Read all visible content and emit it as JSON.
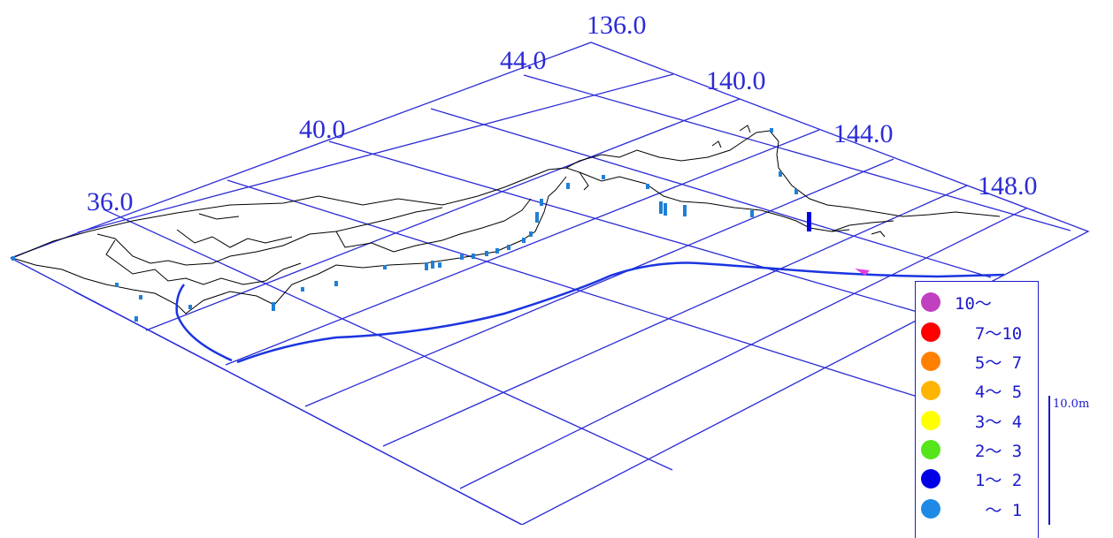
{
  "map": {
    "grid_labels": {
      "lat_36": "36.0",
      "lat_40": "40.0",
      "lat_44": "44.0",
      "lon_136": "136.0",
      "lon_140": "140.0",
      "lon_144": "144.0",
      "lon_148": "148.0"
    },
    "grid_color": "#2b2bd6",
    "coast_color": "#000000",
    "track_color": "#1a35e0",
    "bar_color": "#1f7fd6",
    "arrow_color": "#e040e0"
  },
  "legend": {
    "items": [
      {
        "label": "10～",
        "color": "#c040c0"
      },
      {
        "label": "  7～10",
        "color": "#ff0000"
      },
      {
        "label": "  5～ 7",
        "color": "#ff8000"
      },
      {
        "label": "  4～ 5",
        "color": "#ffb400"
      },
      {
        "label": "  3～ 4",
        "color": "#ffff00"
      },
      {
        "label": "  2～ 3",
        "color": "#55e51a"
      },
      {
        "label": "  1～ 2",
        "color": "#0000e6"
      },
      {
        "label": "   ～ 1",
        "color": "#1e8ae6"
      }
    ]
  },
  "scale": {
    "label": "10.0m"
  }
}
